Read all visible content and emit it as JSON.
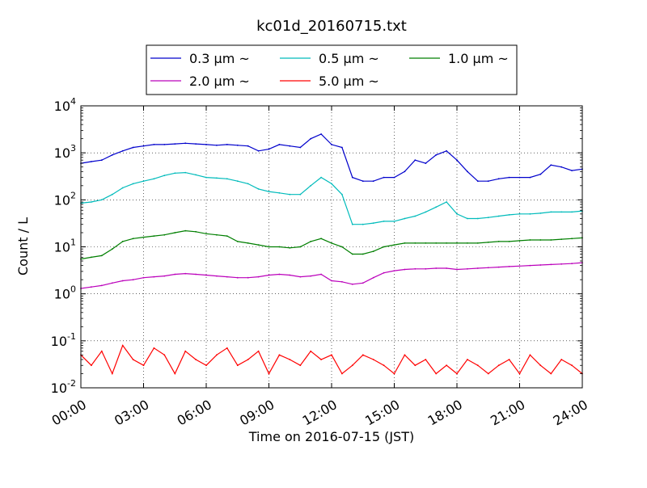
{
  "chart_data": {
    "type": "line",
    "title": "kc01d_20160715.txt",
    "xlabel": "Time on 2016-07-15 (JST)",
    "ylabel": "Count / L",
    "yscale": "log",
    "xlim": [
      "00:00",
      "24:00"
    ],
    "ylim": [
      0.01,
      10000
    ],
    "grid": true,
    "legend": {
      "placement": "top-center",
      "columns": 3
    },
    "x_ticks": [
      "00:00",
      "03:00",
      "06:00",
      "09:00",
      "12:00",
      "15:00",
      "18:00",
      "21:00",
      "24:00"
    ],
    "y_ticks": [
      {
        "base": "10",
        "exp": "-2",
        "value": 0.01
      },
      {
        "base": "10",
        "exp": "-1",
        "value": 0.1
      },
      {
        "base": "10",
        "exp": "0",
        "value": 1
      },
      {
        "base": "10",
        "exp": "1",
        "value": 10
      },
      {
        "base": "10",
        "exp": "2",
        "value": 100
      },
      {
        "base": "10",
        "exp": "3",
        "value": 1000
      },
      {
        "base": "10",
        "exp": "4",
        "value": 10000
      }
    ],
    "x_hours": [
      0,
      0.5,
      1,
      1.5,
      2,
      2.5,
      3,
      3.5,
      4,
      4.5,
      5,
      5.5,
      6,
      6.5,
      7,
      7.5,
      8,
      8.5,
      9,
      9.5,
      10,
      10.5,
      11,
      11.5,
      12,
      12.5,
      13,
      13.5,
      14,
      14.5,
      15,
      15.5,
      16,
      16.5,
      17,
      17.5,
      18,
      18.5,
      19,
      19.5,
      20,
      20.5,
      21,
      21.5,
      22,
      22.5,
      23,
      23.5,
      24
    ],
    "series": [
      {
        "name": "0.3 μm ~",
        "color": "#0000cc",
        "values": [
          600,
          650,
          700,
          900,
          1100,
          1300,
          1400,
          1500,
          1500,
          1550,
          1600,
          1550,
          1500,
          1450,
          1500,
          1450,
          1400,
          1100,
          1200,
          1500,
          1400,
          1300,
          2000,
          2500,
          1500,
          1300,
          300,
          250,
          250,
          300,
          300,
          400,
          700,
          600,
          900,
          1100,
          700,
          400,
          250,
          250,
          280,
          300,
          300,
          300,
          350,
          550,
          500,
          420,
          450
        ]
      },
      {
        "name": "0.5 μm ~",
        "color": "#00bbbb",
        "values": [
          85,
          90,
          100,
          130,
          180,
          220,
          250,
          280,
          330,
          370,
          380,
          340,
          300,
          290,
          280,
          250,
          220,
          170,
          150,
          140,
          130,
          130,
          200,
          300,
          220,
          130,
          30,
          30,
          32,
          35,
          35,
          40,
          45,
          55,
          70,
          90,
          50,
          40,
          40,
          42,
          45,
          48,
          50,
          50,
          52,
          55,
          55,
          55,
          58
        ]
      },
      {
        "name": "1.0 μm ~",
        "color": "#007f00",
        "values": [
          5.5,
          6,
          6.5,
          9,
          13,
          15,
          16,
          17,
          18,
          20,
          22,
          21,
          19,
          18,
          17,
          13,
          12,
          11,
          10,
          10,
          9.5,
          10,
          13,
          15,
          12,
          10,
          7,
          7,
          8,
          10,
          11,
          12,
          12,
          12,
          12,
          12,
          12,
          12,
          12,
          12.5,
          13,
          13,
          13.5,
          14,
          14,
          14,
          14.5,
          15,
          15.5
        ]
      },
      {
        "name": "2.0 μm ~",
        "color": "#bb00bb",
        "values": [
          1.3,
          1.4,
          1.5,
          1.7,
          1.9,
          2.0,
          2.2,
          2.3,
          2.4,
          2.6,
          2.7,
          2.6,
          2.5,
          2.4,
          2.3,
          2.2,
          2.2,
          2.3,
          2.5,
          2.6,
          2.5,
          2.3,
          2.4,
          2.6,
          1.9,
          1.8,
          1.6,
          1.7,
          2.2,
          2.8,
          3.1,
          3.3,
          3.4,
          3.4,
          3.5,
          3.5,
          3.3,
          3.4,
          3.5,
          3.6,
          3.7,
          3.8,
          3.9,
          4.0,
          4.1,
          4.2,
          4.3,
          4.4,
          4.6
        ]
      },
      {
        "name": "5.0 μm ~",
        "color": "#ff0000",
        "values": [
          0.05,
          0.03,
          0.06,
          0.02,
          0.08,
          0.04,
          0.03,
          0.07,
          0.05,
          0.02,
          0.06,
          0.04,
          0.03,
          0.05,
          0.07,
          0.03,
          0.04,
          0.06,
          0.02,
          0.05,
          0.04,
          0.03,
          0.06,
          0.04,
          0.05,
          0.02,
          0.03,
          0.05,
          0.04,
          0.03,
          0.02,
          0.05,
          0.03,
          0.04,
          0.02,
          0.03,
          0.02,
          0.04,
          0.03,
          0.02,
          0.03,
          0.04,
          0.02,
          0.05,
          0.03,
          0.02,
          0.04,
          0.03,
          0.02
        ]
      }
    ]
  }
}
